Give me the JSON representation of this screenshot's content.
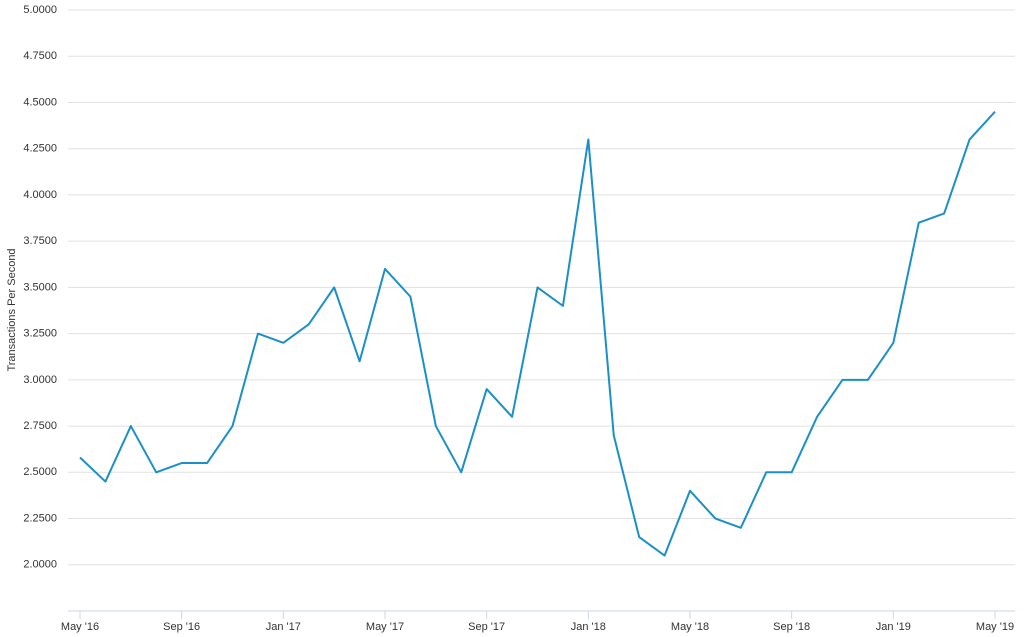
{
  "chart_data": {
    "type": "line",
    "y_label": "Transactions Per Second",
    "x": [
      "2016-05",
      "2016-06",
      "2016-07",
      "2016-08",
      "2016-09",
      "2016-10",
      "2016-11",
      "2016-12",
      "2017-01",
      "2017-02",
      "2017-03",
      "2017-04",
      "2017-05",
      "2017-06",
      "2017-07",
      "2017-08",
      "2017-09",
      "2017-10",
      "2017-11",
      "2017-12",
      "2018-01",
      "2018-02",
      "2018-03",
      "2018-04",
      "2018-05",
      "2018-06",
      "2018-07",
      "2018-08",
      "2018-09",
      "2018-10",
      "2018-11",
      "2018-12",
      "2019-01",
      "2019-02",
      "2019-03",
      "2019-04",
      "2019-05"
    ],
    "series": [
      {
        "name": "Transactions Per Second",
        "color": "#1a8fc9",
        "values": [
          2.58,
          2.45,
          2.75,
          2.5,
          2.55,
          2.55,
          2.75,
          3.25,
          3.2,
          3.3,
          3.5,
          3.1,
          3.6,
          3.45,
          2.75,
          2.5,
          2.95,
          2.8,
          3.5,
          3.4,
          4.3,
          2.7,
          2.15,
          2.05,
          2.4,
          2.25,
          2.2,
          2.5,
          2.5,
          2.8,
          3.0,
          3.0,
          3.2,
          3.85,
          3.9,
          4.3,
          4.45
        ]
      }
    ],
    "xlim": [
      "2016-05",
      "2019-05"
    ],
    "xticks": [
      {
        "value": "2016-05",
        "label": "May '16"
      },
      {
        "value": "2016-09",
        "label": "Sep '16"
      },
      {
        "value": "2017-01",
        "label": "Jan '17"
      },
      {
        "value": "2017-05",
        "label": "May '17"
      },
      {
        "value": "2017-09",
        "label": "Sep '17"
      },
      {
        "value": "2018-01",
        "label": "Jan '18"
      },
      {
        "value": "2018-05",
        "label": "May '18"
      },
      {
        "value": "2018-09",
        "label": "Sep '18"
      },
      {
        "value": "2019-01",
        "label": "Jan '19"
      },
      {
        "value": "2019-05",
        "label": "May '19"
      }
    ],
    "ylim": [
      1.75,
      5.0
    ],
    "yticks": [
      {
        "value": 2.0,
        "label": "2.0000"
      },
      {
        "value": 2.25,
        "label": "2.2500"
      },
      {
        "value": 2.5,
        "label": "2.5000"
      },
      {
        "value": 2.75,
        "label": "2.7500"
      },
      {
        "value": 3.0,
        "label": "3.0000"
      },
      {
        "value": 3.25,
        "label": "3.2500"
      },
      {
        "value": 3.5,
        "label": "3.5000"
      },
      {
        "value": 3.75,
        "label": "3.7500"
      },
      {
        "value": 4.0,
        "label": "4.0000"
      },
      {
        "value": 4.25,
        "label": "4.2500"
      },
      {
        "value": 4.5,
        "label": "4.5000"
      },
      {
        "value": 4.75,
        "label": "4.7500"
      },
      {
        "value": 5.0,
        "label": "5.0000"
      }
    ],
    "grid": true
  }
}
